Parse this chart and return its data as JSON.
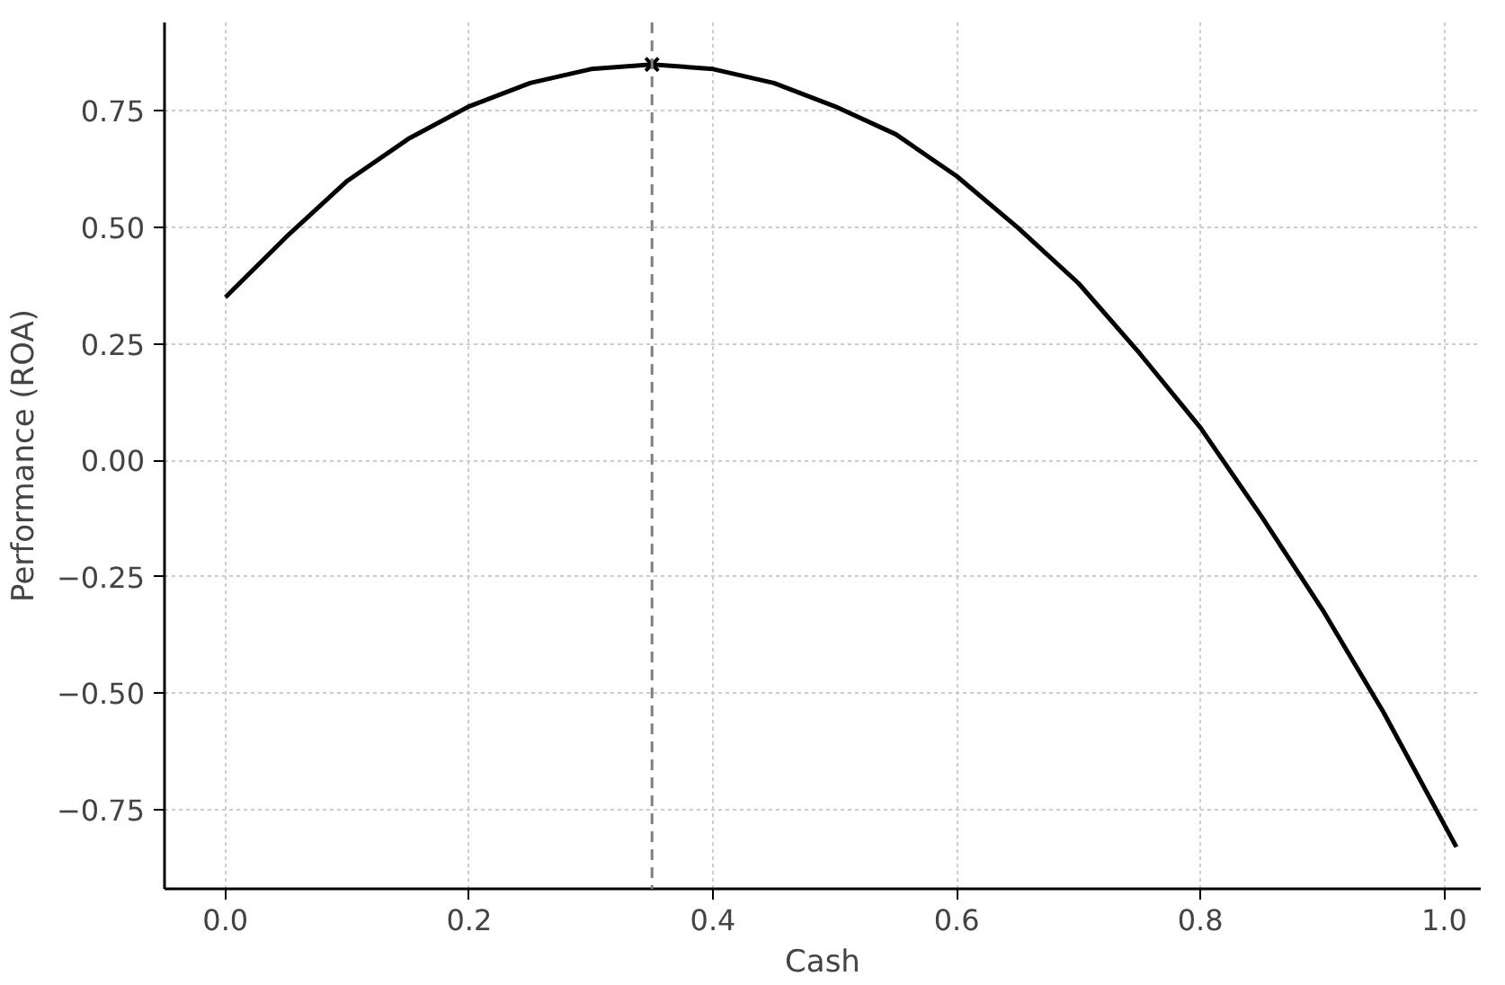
{
  "chart_data": {
    "type": "line",
    "xlabel": "Cash",
    "ylabel": "Performance (ROA)",
    "xlim": [
      -0.05,
      1.03
    ],
    "ylim": [
      -0.92,
      0.94
    ],
    "xticks": [
      {
        "value": 0,
        "label": "0.0"
      },
      {
        "value": 0.2,
        "label": "0.2"
      },
      {
        "value": 0.4,
        "label": "0.4"
      },
      {
        "value": 0.6,
        "label": "0.6"
      },
      {
        "value": 0.8,
        "label": "0.8"
      },
      {
        "value": 1,
        "label": "1.0"
      }
    ],
    "yticks": [
      {
        "value": -0.75,
        "label": "−0.75"
      },
      {
        "value": -0.5,
        "label": "−0.50"
      },
      {
        "value": -0.25,
        "label": "−0.25"
      },
      {
        "value": 0,
        "label": "0.00"
      },
      {
        "value": 0.25,
        "label": "0.25"
      },
      {
        "value": 0.5,
        "label": "0.50"
      },
      {
        "value": 0.75,
        "label": "0.75"
      }
    ],
    "grid": true,
    "line_style": "solid",
    "series": [
      {
        "color": "#000000",
        "marker": "none",
        "x": [
          0,
          0.05,
          0.1,
          0.15,
          0.2,
          0.25,
          0.3,
          0.35,
          0.4,
          0.45,
          0.5,
          0.55,
          0.6,
          0.65,
          0.7,
          0.75,
          0.8,
          0.85,
          0.9,
          0.95,
          1.01
        ],
        "values": [
          0.35,
          0.48,
          0.6,
          0.69,
          0.76,
          0.81,
          0.84,
          0.85,
          0.84,
          0.81,
          0.76,
          0.7,
          0.61,
          0.5,
          0.38,
          0.23,
          0.07,
          -0.12,
          -0.32,
          -0.54,
          -0.83
        ]
      },
      {
        "type": "scatter",
        "color": "#000000",
        "marker": "cross",
        "x": [
          0.35
        ],
        "values": [
          0.85
        ]
      }
    ],
    "ref_lines": [
      {
        "axis": "x",
        "value": 0.35,
        "color": "#808080",
        "line_style": "dashed"
      }
    ]
  }
}
